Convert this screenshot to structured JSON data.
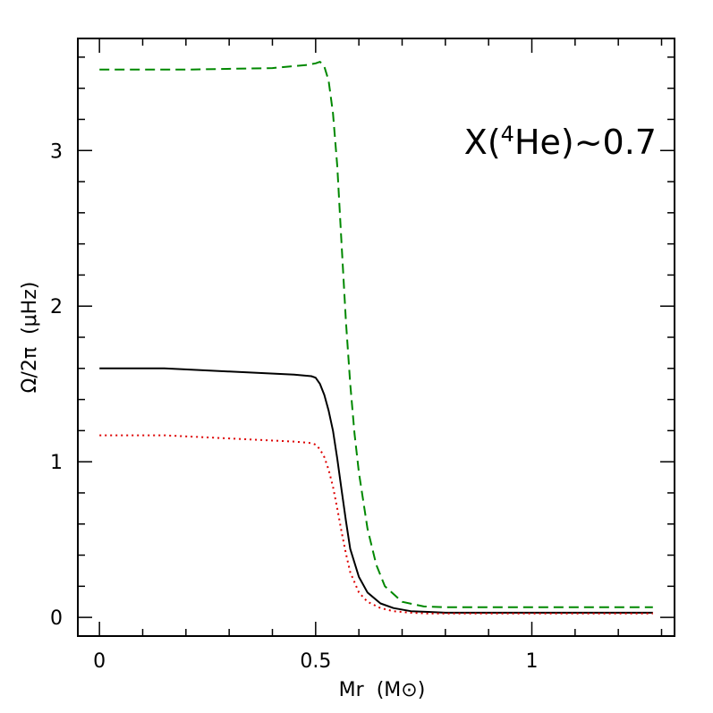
{
  "chart_data": {
    "type": "line",
    "title": "",
    "xlabel": "Mr",
    "xlabel_unit": "M⊙",
    "ylabel": "Ω/2π",
    "ylabel_unit": "μHz",
    "xlim": [
      -0.05,
      1.33
    ],
    "ylim": [
      -0.12,
      3.72
    ],
    "xticks": [
      0,
      0.5,
      1
    ],
    "xtick_labels": [
      "0",
      "0.5",
      "1"
    ],
    "yticks": [
      0,
      1,
      2,
      3
    ],
    "ytick_labels": [
      "0",
      "1",
      "2",
      "3"
    ],
    "x_minor_step": 0.1,
    "y_minor_step": 0.2,
    "grid": false,
    "annotation": {
      "prefix": "X(",
      "superscript": "4",
      "element": "He",
      "suffix": ")~0.7"
    },
    "series": [
      {
        "color": "#000000",
        "dash": "solid",
        "x": [
          0,
          0.15,
          0.3,
          0.45,
          0.49,
          0.5,
          0.51,
          0.52,
          0.53,
          0.54,
          0.55,
          0.56,
          0.57,
          0.58,
          0.6,
          0.62,
          0.65,
          0.68,
          0.72,
          0.76,
          0.8,
          1.0,
          1.28
        ],
        "y": [
          1.6,
          1.6,
          1.58,
          1.56,
          1.55,
          1.54,
          1.5,
          1.43,
          1.33,
          1.2,
          1.02,
          0.82,
          0.62,
          0.44,
          0.26,
          0.16,
          0.09,
          0.06,
          0.04,
          0.035,
          0.03,
          0.03,
          0.03
        ]
      },
      {
        "color": "#dd0000",
        "dash": "dotted",
        "x": [
          0,
          0.15,
          0.3,
          0.45,
          0.49,
          0.5,
          0.51,
          0.52,
          0.53,
          0.54,
          0.55,
          0.56,
          0.57,
          0.58,
          0.6,
          0.62,
          0.65,
          0.68,
          0.72,
          0.76,
          0.8,
          1.0,
          1.28
        ],
        "y": [
          1.17,
          1.17,
          1.15,
          1.13,
          1.12,
          1.11,
          1.08,
          1.03,
          0.95,
          0.84,
          0.7,
          0.55,
          0.41,
          0.29,
          0.16,
          0.1,
          0.06,
          0.04,
          0.03,
          0.025,
          0.025,
          0.025,
          0.025
        ]
      },
      {
        "color": "#008800",
        "dash": "dashed",
        "x": [
          0,
          0.2,
          0.4,
          0.48,
          0.5,
          0.51,
          0.52,
          0.53,
          0.54,
          0.55,
          0.56,
          0.57,
          0.58,
          0.59,
          0.6,
          0.62,
          0.64,
          0.66,
          0.7,
          0.75,
          0.8,
          1.0,
          1.28
        ],
        "y": [
          3.52,
          3.52,
          3.53,
          3.55,
          3.56,
          3.57,
          3.54,
          3.45,
          3.24,
          2.9,
          2.4,
          1.9,
          1.5,
          1.18,
          0.93,
          0.57,
          0.34,
          0.2,
          0.1,
          0.07,
          0.065,
          0.065,
          0.065
        ]
      }
    ]
  }
}
